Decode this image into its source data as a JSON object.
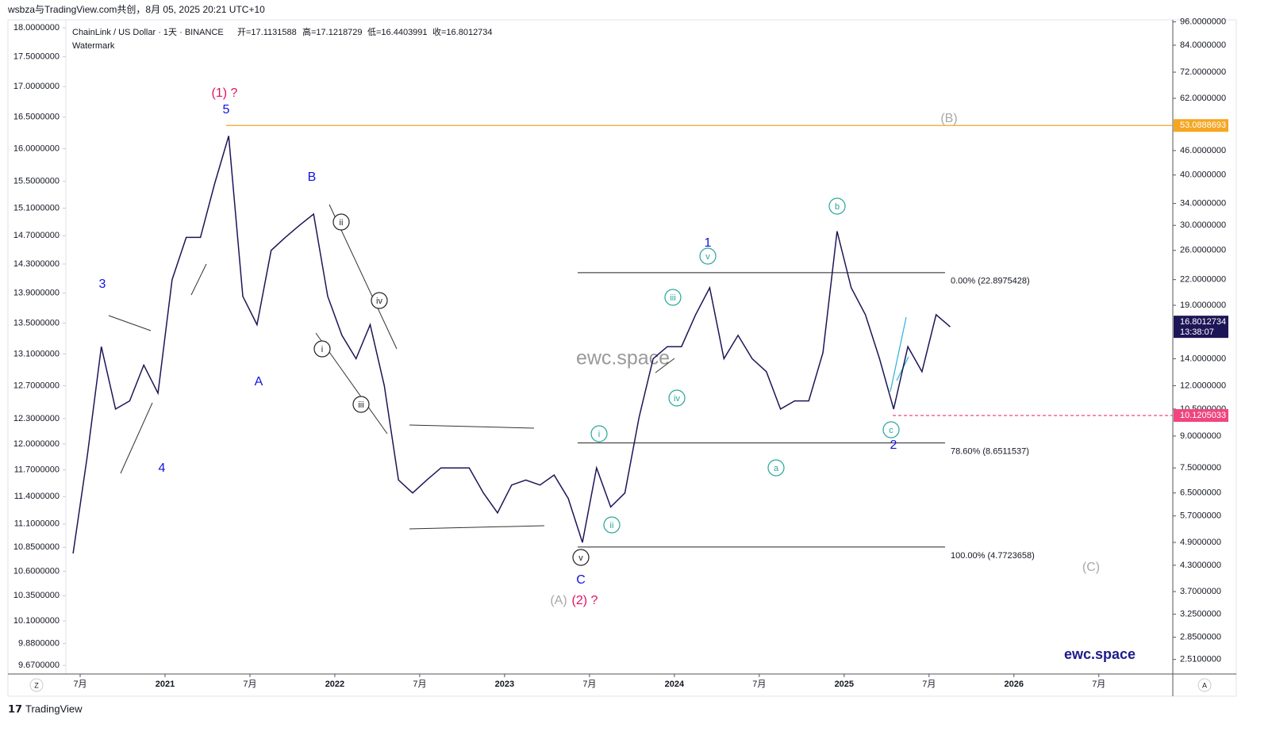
{
  "header": {
    "caption": "wsbza与TradingView.com共创，8月 05, 2025 20:21 UTC+10",
    "symbol": "ChainLink / US Dollar · 1天 · BINANCE",
    "ohlc": [
      "开=17.1131588",
      "高=17.1218729",
      "低=16.4403991",
      "收=16.8012734"
    ],
    "indicator": "Watermark"
  },
  "watermarks": [
    "ewc.space",
    "ewc.space"
  ],
  "footer": {
    "logo": "TradingView",
    "left_button": "Z",
    "right_button": "A"
  },
  "chart_data": {
    "type": "line",
    "log_scale": true,
    "grid": false,
    "color": "#1c1657",
    "x": [
      "2020-06",
      "2020-07",
      "2020-08",
      "2020-09",
      "2020-10",
      "2020-11",
      "2020-12",
      "2021-01",
      "2021-02",
      "2021-03",
      "2021-04",
      "2021-05",
      "2021-06",
      "2021-07",
      "2021-08",
      "2021-09",
      "2021-10",
      "2021-11",
      "2021-12",
      "2022-01",
      "2022-02",
      "2022-03",
      "2022-04",
      "2022-05",
      "2022-06",
      "2022-07",
      "2022-08",
      "2022-09",
      "2022-10",
      "2022-11",
      "2022-12",
      "2023-01",
      "2023-02",
      "2023-03",
      "2023-04",
      "2023-05",
      "2023-06",
      "2023-07",
      "2023-08",
      "2023-09",
      "2023-10",
      "2023-11",
      "2023-12",
      "2024-01",
      "2024-02",
      "2024-03",
      "2024-04",
      "2024-05",
      "2024-06",
      "2024-07",
      "2024-08",
      "2024-09",
      "2024-10",
      "2024-11",
      "2024-12",
      "2025-01",
      "2025-02",
      "2025-03",
      "2025-04",
      "2025-05",
      "2025-06",
      "2025-07",
      "2025-08"
    ],
    "values": [
      4.6,
      8.0,
      15,
      10.5,
      11,
      13.5,
      11.5,
      22,
      28,
      28,
      38,
      50,
      20,
      17,
      26,
      28,
      30,
      32,
      20,
      16,
      14,
      17,
      12,
      7,
      6.5,
      7,
      7.5,
      7.5,
      7.5,
      6.5,
      5.8,
      6.8,
      7,
      6.8,
      7.2,
      6.3,
      4.9,
      7.5,
      6.0,
      6.5,
      10,
      14,
      15,
      15,
      18,
      21,
      14,
      16,
      14,
      13,
      10.5,
      11,
      11,
      14.5,
      29,
      21,
      18,
      14,
      10.5,
      15,
      13,
      18,
      16.8
    ],
    "ylim": [
      2.31,
      95.8
    ],
    "yticks": [
      {
        "value": 96,
        "label": "96.0000000"
      },
      {
        "value": 84,
        "label": "84.0000000"
      },
      {
        "value": 72,
        "label": "72.0000000"
      },
      {
        "value": 62,
        "label": "62.0000000"
      },
      {
        "value": 46,
        "label": "46.0000000"
      },
      {
        "value": 40,
        "label": "40.0000000"
      },
      {
        "value": 34,
        "label": "34.0000000"
      },
      {
        "value": 30,
        "label": "30.0000000"
      },
      {
        "value": 26,
        "label": "26.0000000"
      },
      {
        "value": 22,
        "label": "22.0000000"
      },
      {
        "value": 19,
        "label": "19.0000000"
      },
      {
        "value": 14,
        "label": "14.0000000"
      },
      {
        "value": 12,
        "label": "12.0000000"
      },
      {
        "value": 10.5,
        "label": "10.5000000"
      },
      {
        "value": 9,
        "label": "9.0000000"
      },
      {
        "value": 7.5,
        "label": "7.5000000"
      },
      {
        "value": 6.5,
        "label": "6.5000000"
      },
      {
        "value": 5.7,
        "label": "5.7000000"
      },
      {
        "value": 4.9,
        "label": "4.9000000"
      },
      {
        "value": 4.3,
        "label": "4.3000000"
      },
      {
        "value": 3.7,
        "label": "3.7000000"
      },
      {
        "value": 3.25,
        "label": "3.2500000"
      },
      {
        "value": 2.85,
        "label": "2.8500000"
      },
      {
        "value": 2.51,
        "label": "2.5100000"
      }
    ],
    "y2lim": [
      9.59,
      18.1
    ],
    "y2ticks": [
      {
        "value": 18,
        "label": "18.0000000"
      },
      {
        "value": 17.5,
        "label": "17.5000000"
      },
      {
        "value": 17,
        "label": "17.0000000"
      },
      {
        "value": 16.5,
        "label": "16.5000000"
      },
      {
        "value": 16,
        "label": "16.0000000"
      },
      {
        "value": 15.5,
        "label": "15.5000000"
      },
      {
        "value": 15.1,
        "label": "15.1000000"
      },
      {
        "value": 14.7,
        "label": "14.7000000"
      },
      {
        "value": 14.3,
        "label": "14.3000000"
      },
      {
        "value": 13.9,
        "label": "13.9000000"
      },
      {
        "value": 13.5,
        "label": "13.5000000"
      },
      {
        "value": 13.1,
        "label": "13.1000000"
      },
      {
        "value": 12.7,
        "label": "12.7000000"
      },
      {
        "value": 12.3,
        "label": "12.3000000"
      },
      {
        "value": 12,
        "label": "12.0000000"
      },
      {
        "value": 11.7,
        "label": "11.7000000"
      },
      {
        "value": 11.4,
        "label": "11.4000000"
      },
      {
        "value": 11.1,
        "label": "11.1000000"
      },
      {
        "value": 10.85,
        "label": "10.8500000"
      },
      {
        "value": 10.6,
        "label": "10.6000000"
      },
      {
        "value": 10.35,
        "label": "10.3500000"
      },
      {
        "value": 10.1,
        "label": "10.1000000"
      },
      {
        "value": 9.88,
        "label": "9.8800000"
      },
      {
        "value": 9.67,
        "label": "9.6700000"
      }
    ],
    "xticks": [
      {
        "value": "2020-07",
        "label": "7月"
      },
      {
        "value": "2021-01",
        "label": "2021"
      },
      {
        "value": "2021-07",
        "label": "7月"
      },
      {
        "value": "2022-01",
        "label": "2022"
      },
      {
        "value": "2022-07",
        "label": "7月"
      },
      {
        "value": "2023-01",
        "label": "2023"
      },
      {
        "value": "2023-07",
        "label": "7月"
      },
      {
        "value": "2024-01",
        "label": "2024"
      },
      {
        "value": "2024-07",
        "label": "7月"
      },
      {
        "value": "2025-01",
        "label": "2025"
      },
      {
        "value": "2025-07",
        "label": "7月"
      },
      {
        "value": "2026-01",
        "label": "2026"
      },
      {
        "value": "2026-07",
        "label": "7月"
      }
    ],
    "levels": [
      {
        "value": 53.0888693,
        "color": "#f5a623",
        "style": "solid"
      },
      {
        "value": 10.1205033,
        "color": "#f0457e",
        "style": "dashed"
      }
    ],
    "last_price": 16.8012734,
    "countdown": "13:38:07",
    "fib": [
      {
        "label": "0.00% (22.8975428)",
        "value": 22.8975428
      },
      {
        "label": "78.60% (8.6511537)",
        "value": 8.6511537
      },
      {
        "label": "100.00% (4.7723658)",
        "value": 4.7723658
      }
    ],
    "annotations": [
      {
        "text": "(1) ?",
        "color": "#e3105f",
        "circled": false
      },
      {
        "text": "5",
        "color": "#1212e0",
        "circled": false
      },
      {
        "text": "3",
        "color": "#1212e0",
        "circled": false
      },
      {
        "text": "4",
        "color": "#1212e0",
        "circled": false
      },
      {
        "text": "A",
        "color": "#1212e0",
        "circled": false
      },
      {
        "text": "B",
        "color": "#1212e0",
        "circled": false
      },
      {
        "text": "C",
        "color": "#1212e0",
        "circled": false
      },
      {
        "text": "(A)",
        "color": "#a8a8a8",
        "circled": false
      },
      {
        "text": "(2) ?",
        "color": "#e3105f",
        "circled": false
      },
      {
        "text": "1",
        "color": "#1212e0",
        "circled": false
      },
      {
        "text": "2",
        "color": "#1212e0",
        "circled": false
      },
      {
        "text": "(B)",
        "color": "#a8a8a8",
        "circled": false
      },
      {
        "text": "(C)",
        "color": "#a8a8a8",
        "circled": false
      },
      {
        "text": "i",
        "color": "#222222",
        "circled": true
      },
      {
        "text": "ii",
        "color": "#222222",
        "circled": true
      },
      {
        "text": "iii",
        "color": "#222222",
        "circled": true
      },
      {
        "text": "iv",
        "color": "#222222",
        "circled": true
      },
      {
        "text": "v",
        "color": "#222222",
        "circled": true
      },
      {
        "text": "i",
        "color": "#26a69a",
        "circled": true
      },
      {
        "text": "ii",
        "color": "#26a69a",
        "circled": true
      },
      {
        "text": "iii",
        "color": "#26a69a",
        "circled": true
      },
      {
        "text": "iv",
        "color": "#26a69a",
        "circled": true
      },
      {
        "text": "v",
        "color": "#26a69a",
        "circled": true
      },
      {
        "text": "a",
        "color": "#26a69a",
        "circled": true
      },
      {
        "text": "b",
        "color": "#26a69a",
        "circled": true
      },
      {
        "text": "c",
        "color": "#26a69a",
        "circled": true
      }
    ]
  }
}
